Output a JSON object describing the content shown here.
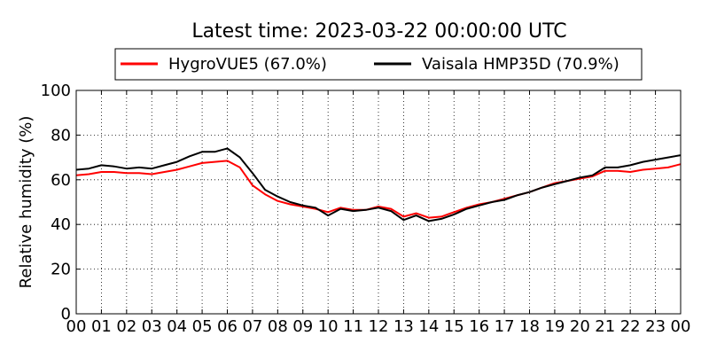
{
  "chart_data": {
    "type": "line",
    "title": "Latest time: 2023-03-22 00:00:00 UTC",
    "xlabel": "",
    "ylabel": "Relative humidity (%)",
    "xlim": [
      0,
      24
    ],
    "ylim": [
      0,
      100
    ],
    "grid": true,
    "legend_position": "top",
    "x_tick_labels": [
      "00",
      "01",
      "02",
      "03",
      "04",
      "05",
      "06",
      "07",
      "08",
      "09",
      "10",
      "11",
      "12",
      "13",
      "14",
      "15",
      "16",
      "17",
      "18",
      "19",
      "20",
      "21",
      "22",
      "23",
      "00"
    ],
    "y_tick_labels": [
      "0",
      "20",
      "40",
      "60",
      "80",
      "100"
    ],
    "x": [
      0,
      0.5,
      1,
      1.5,
      2,
      2.5,
      3,
      3.5,
      4,
      4.5,
      5,
      5.5,
      6,
      6.5,
      7,
      7.5,
      8,
      8.5,
      9,
      9.5,
      10,
      10.5,
      11,
      11.5,
      12,
      12.5,
      13,
      13.5,
      14,
      14.5,
      15,
      15.5,
      16,
      16.5,
      17,
      17.5,
      18,
      18.5,
      19,
      19.5,
      20,
      20.5,
      21,
      21.5,
      22,
      22.5,
      23,
      23.5,
      24
    ],
    "series": [
      {
        "name": "HygroVUE5 (67.0%)",
        "color": "#ff0000",
        "values": [
          62,
          62.5,
          63.5,
          63.5,
          63,
          63,
          62.5,
          63.5,
          64.5,
          66,
          67.5,
          68,
          68.5,
          65.5,
          57.5,
          53.5,
          50.5,
          49,
          48,
          47,
          45.5,
          47.5,
          46.5,
          46.5,
          48,
          47,
          43.5,
          45,
          43,
          43.5,
          45.5,
          47.5,
          49,
          50,
          51.5,
          53,
          54.5,
          56.5,
          58.5,
          59.5,
          60.5,
          61.5,
          64,
          64,
          63.5,
          64.5,
          65,
          65.5,
          67
        ]
      },
      {
        "name": "Vaisala HMP35D (70.9%)",
        "color": "#000000",
        "values": [
          64.5,
          65,
          66.5,
          66,
          65,
          65.5,
          65,
          66.5,
          68,
          70.5,
          72.5,
          72.5,
          74,
          70,
          63,
          55.5,
          52.5,
          50,
          48.5,
          47.5,
          44,
          47,
          46,
          46.5,
          47.5,
          46,
          42,
          44,
          41.5,
          42.5,
          44.5,
          47,
          48.5,
          50,
          51,
          53,
          54.5,
          56.5,
          58,
          59.5,
          61,
          62,
          65.5,
          65.5,
          66.5,
          68,
          69,
          70,
          71
        ]
      }
    ]
  }
}
